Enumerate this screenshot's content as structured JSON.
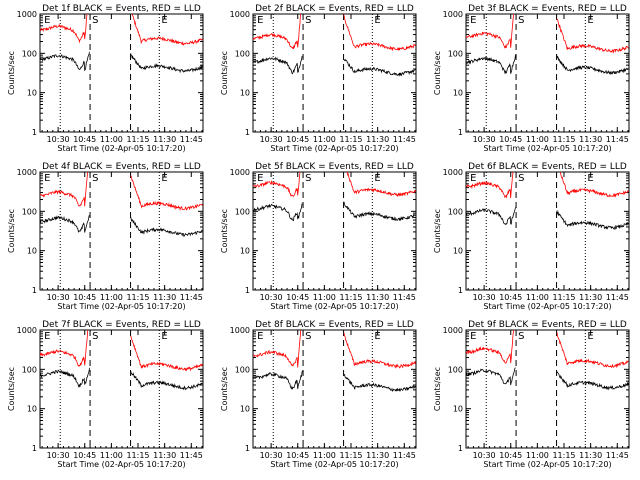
{
  "chart_data": {
    "type": "line",
    "layout": "3x3 grid",
    "shared": {
      "xlabel": "Start Time (02-Apr-05 10:17:20)",
      "ylabel": "Counts/sec",
      "yscale": "log",
      "ylim": [
        1,
        1000
      ],
      "xlim_minutes": [
        10.33,
        11.86
      ],
      "xtick_labels": [
        "10:30",
        "10:45",
        "11:00",
        "11:15",
        "11:30",
        "11:45"
      ],
      "xtick_minutes": [
        10.5,
        10.75,
        11.0,
        11.25,
        11.5,
        11.75
      ],
      "ytick_labels": [
        "1",
        "10",
        "100",
        "1000"
      ],
      "ytick_values": [
        1,
        10,
        100,
        1000
      ],
      "series_names": [
        "Events",
        "LLD"
      ],
      "series_colors": {
        "Events": "#000000",
        "LLD": "#ff0000"
      },
      "grid_dotted_at_hours": [
        10.52,
        11.45
      ],
      "saa_dashed_at_hours": [
        10.8,
        11.18
      ],
      "markers": [
        {
          "label": "E",
          "at_hour": 10.35
        },
        {
          "label": "S",
          "at_hour": 10.8
        },
        {
          "label": "E",
          "at_hour": 11.45
        }
      ]
    },
    "panels": [
      {
        "title": "Det 1f  BLACK = Events, RED = LLD",
        "events_pre": 70,
        "events_post": 42,
        "lld_pre": 390,
        "lld_post": 210
      },
      {
        "title": "Det 2f  BLACK = Events, RED = LLD",
        "events_pre": 60,
        "events_post": 35,
        "lld_pre": 240,
        "lld_post": 150
      },
      {
        "title": "Det 3f  BLACK = Events, RED = LLD",
        "events_pre": 60,
        "events_post": 38,
        "lld_pre": 260,
        "lld_post": 135
      },
      {
        "title": "Det 4f  BLACK = Events, RED = LLD",
        "events_pre": 55,
        "events_post": 30,
        "lld_pre": 250,
        "lld_post": 140
      },
      {
        "title": "Det 5f  BLACK = Events, RED = LLD",
        "events_pre": 110,
        "events_post": 75,
        "lld_pre": 430,
        "lld_post": 310
      },
      {
        "title": "Det 6f  BLACK = Events, RED = LLD",
        "events_pre": 85,
        "events_post": 45,
        "lld_pre": 420,
        "lld_post": 300
      },
      {
        "title": "Det 7f  BLACK = Events, RED = LLD",
        "events_pre": 70,
        "events_post": 40,
        "lld_pre": 230,
        "lld_post": 120
      },
      {
        "title": "Det 8f  BLACK = Events, RED = LLD",
        "events_pre": 60,
        "events_post": 35,
        "lld_pre": 220,
        "lld_post": 140
      },
      {
        "title": "Det 9f  BLACK = Events, RED = LLD",
        "events_pre": 75,
        "events_post": 40,
        "lld_pre": 270,
        "lld_post": 145
      }
    ]
  }
}
